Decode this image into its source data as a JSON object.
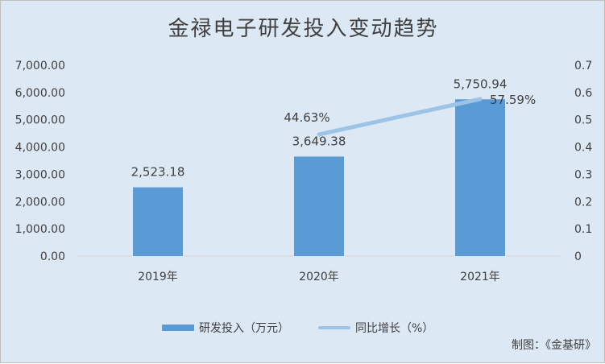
{
  "chart_data": {
    "type": "bar",
    "title": "金禄电子研发投入变动趋势",
    "categories": [
      "2019年",
      "2020年",
      "2021年"
    ],
    "series": [
      {
        "name": "研发投入（万元）",
        "type": "bar",
        "axis": "left",
        "values": [
          2523.18,
          3649.38,
          5750.94
        ],
        "labels": [
          "2,523.18",
          "3,649.38",
          "5,750.94"
        ]
      },
      {
        "name": "同比增长（%）",
        "type": "line",
        "axis": "right",
        "values": [
          null,
          0.4463,
          0.5759
        ],
        "labels": [
          "",
          "44.63%",
          "57.59%"
        ]
      }
    ],
    "y_left": {
      "min": 0,
      "max": 7000,
      "ticks": [
        "0.00",
        "1,000.00",
        "2,000.00",
        "3,000.00",
        "4,000.00",
        "5,000.00",
        "6,000.00",
        "7,000.00"
      ]
    },
    "y_right": {
      "min": 0,
      "max": 0.7,
      "ticks": [
        "0",
        "0.1",
        "0.2",
        "0.3",
        "0.4",
        "0.5",
        "0.6",
        "0.7"
      ]
    },
    "legend_position": "bottom",
    "grid": false,
    "colors": {
      "bar": "#5b9bd5",
      "line": "#9dc3e6",
      "background": "#dde8f5",
      "text": "#404040"
    }
  },
  "source_note": "制图：《金基研》"
}
